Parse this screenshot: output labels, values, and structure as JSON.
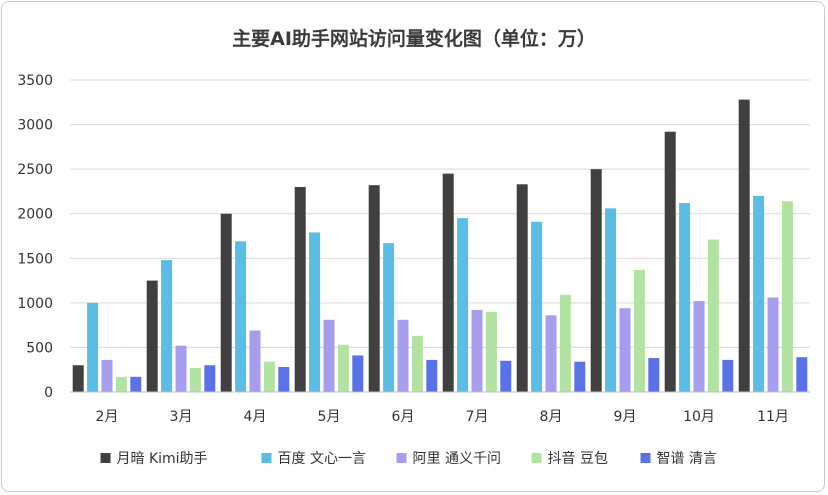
{
  "chart_data": {
    "type": "bar",
    "title": "主要AI助手网站访问量变化图（单位：万）",
    "xlabel": "",
    "ylabel": "",
    "ylim": [
      0,
      3500
    ],
    "yticks": [
      0,
      500,
      1000,
      1500,
      2000,
      2500,
      3000,
      3500
    ],
    "grid": true,
    "legend_position": "bottom",
    "categories": [
      "2月",
      "3月",
      "4月",
      "5月",
      "6月",
      "7月",
      "8月",
      "9月",
      "10月",
      "11月"
    ],
    "series": [
      {
        "name": "月暗 Kimi助手",
        "color": "#404040",
        "values": [
          300,
          1250,
          2000,
          2300,
          2320,
          2450,
          2330,
          2500,
          2920,
          3280
        ]
      },
      {
        "name": "百度 文心一言",
        "color": "#5bbde3",
        "values": [
          1000,
          1480,
          1690,
          1790,
          1670,
          1950,
          1910,
          2060,
          2120,
          2200
        ]
      },
      {
        "name": "阿里 通义千问",
        "color": "#a79ded",
        "values": [
          360,
          520,
          690,
          810,
          810,
          920,
          860,
          940,
          1020,
          1060
        ]
      },
      {
        "name": "抖音 豆包",
        "color": "#b3e3a3",
        "values": [
          170,
          270,
          340,
          530,
          630,
          900,
          1090,
          1370,
          1710,
          2140
        ]
      },
      {
        "name": "智谱 清言",
        "color": "#5a72e6",
        "values": [
          170,
          300,
          280,
          410,
          360,
          350,
          340,
          380,
          360,
          390
        ]
      }
    ]
  }
}
